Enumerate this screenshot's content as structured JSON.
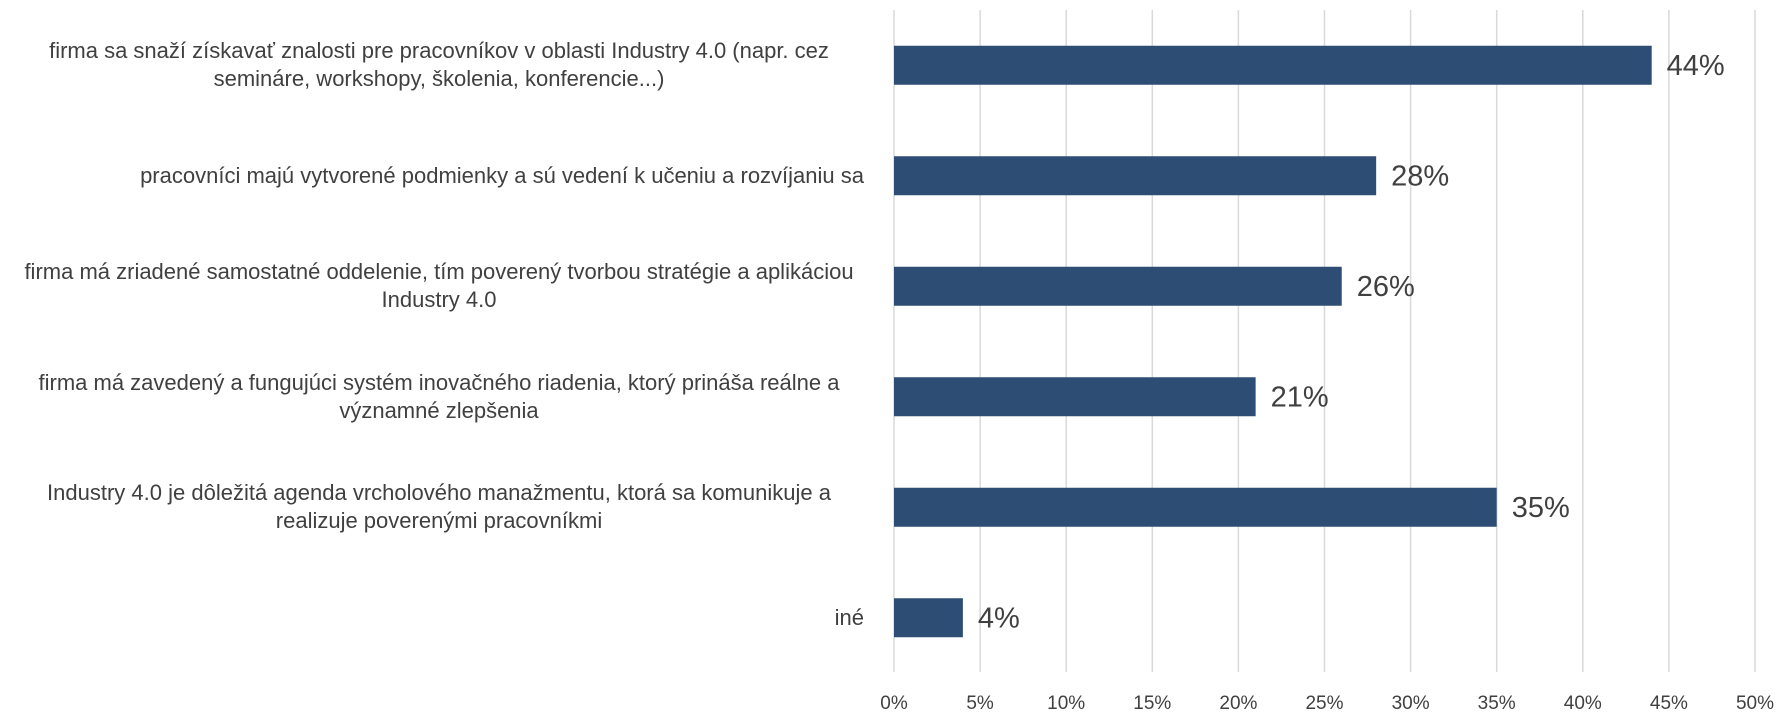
{
  "chart_data": {
    "type": "bar",
    "orientation": "horizontal",
    "categories": [
      "firma sa snaží získavať znalosti pre pracovníkov v oblasti Industry 4.0 (napr. cez semináre, workshopy, školenia, konferencie...)",
      "pracovníci majú vytvorené podmienky a sú vedení k učeniu a rozvíjaniu sa",
      "firma má zriadené samostatné oddelenie, tím poverený tvorbou stratégie a aplikáciou Industry 4.0",
      "firma má zavedený a fungujúci systém inovačného riadenia, ktorý prináša reálne a významné zlepšenia",
      "Industry 4.0 je dôležitá agenda vrcholového manažmentu, ktorá sa komunikuje a realizuje poverenými pracovníkmi",
      "iné"
    ],
    "values": [
      44,
      28,
      26,
      21,
      35,
      4
    ],
    "value_labels": [
      "44%",
      "28%",
      "26%",
      "21%",
      "35%",
      "4%"
    ],
    "color": "#2e4d74",
    "xlim": [
      0,
      50
    ],
    "xticks": [
      {
        "value": 0,
        "label": "0%"
      },
      {
        "value": 5,
        "label": "5%"
      },
      {
        "value": 10,
        "label": "10%"
      },
      {
        "value": 15,
        "label": "15%"
      },
      {
        "value": 20,
        "label": "20%"
      },
      {
        "value": 25,
        "label": "25%"
      },
      {
        "value": 30,
        "label": "30%"
      },
      {
        "value": 35,
        "label": "35%"
      },
      {
        "value": 40,
        "label": "40%"
      },
      {
        "value": 45,
        "label": "45%"
      },
      {
        "value": 50,
        "label": "50%"
      }
    ],
    "grid": true
  }
}
